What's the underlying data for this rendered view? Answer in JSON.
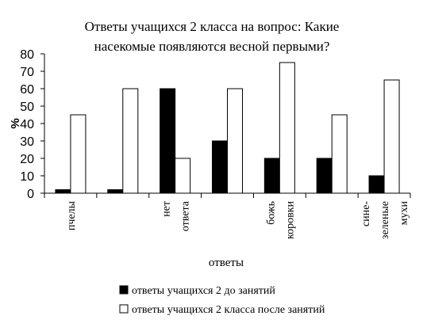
{
  "chart_data": {
    "type": "bar",
    "title_lines": [
      "Ответы учащихся 2 класса на вопрос: Какие",
      "насекомые появляются весной первыми?"
    ],
    "ylabel": "%",
    "xlabel": "ответы",
    "ylim": [
      0,
      80
    ],
    "yticks": [
      0,
      10,
      20,
      30,
      40,
      50,
      60,
      70,
      80
    ],
    "grid": false,
    "legend_position": "bottom",
    "categories": [
      [
        "пчелы"
      ],
      [],
      [
        "нет",
        "ответа"
      ],
      [],
      [
        "божь",
        "коровки"
      ],
      [],
      [
        "сине-",
        "зеленые",
        "мухи"
      ]
    ],
    "series": [
      {
        "name": "ответы учащихся 2 до занятий",
        "color": "#000000",
        "values": [
          2,
          2,
          60,
          30,
          20,
          20,
          10
        ]
      },
      {
        "name": "ответы учащихся 2 класса после занятий",
        "color": "#ffffff",
        "values": [
          45,
          60,
          20,
          60,
          75,
          45,
          65
        ]
      }
    ]
  }
}
